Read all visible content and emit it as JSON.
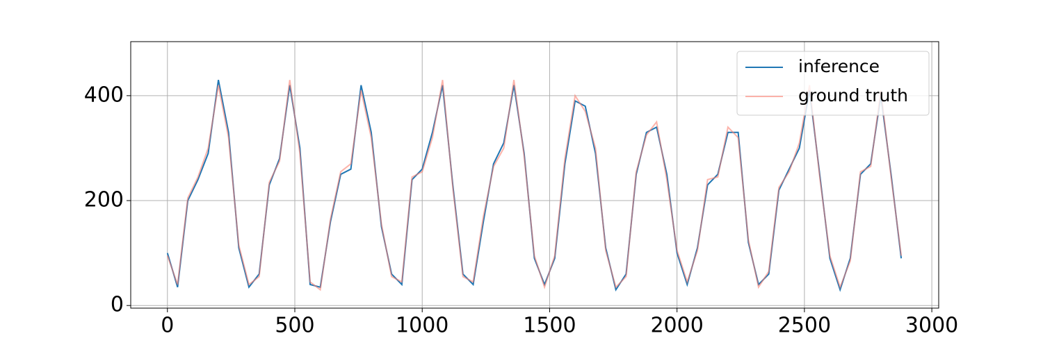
{
  "chart_data": {
    "type": "line",
    "x": [
      0,
      40,
      80,
      120,
      160,
      200,
      240,
      280,
      320,
      360,
      400,
      440,
      480,
      520,
      560,
      600,
      640,
      680,
      720,
      760,
      800,
      840,
      880,
      920,
      960,
      1000,
      1040,
      1080,
      1120,
      1160,
      1200,
      1240,
      1280,
      1320,
      1360,
      1400,
      1440,
      1480,
      1520,
      1560,
      1600,
      1640,
      1680,
      1720,
      1760,
      1800,
      1840,
      1880,
      1920,
      1960,
      2000,
      2040,
      2080,
      2120,
      2160,
      2200,
      2240,
      2280,
      2320,
      2360,
      2400,
      2440,
      2480,
      2520,
      2560,
      2600,
      2640,
      2680,
      2720,
      2760,
      2800,
      2840,
      2880
    ],
    "series": [
      {
        "name": "inference",
        "color": "#1f77b4",
        "values": [
          100,
          35,
          200,
          240,
          290,
          430,
          330,
          110,
          35,
          60,
          230,
          280,
          420,
          300,
          40,
          35,
          160,
          250,
          260,
          420,
          330,
          150,
          60,
          40,
          240,
          260,
          330,
          420,
          230,
          60,
          40,
          160,
          270,
          310,
          420,
          290,
          90,
          40,
          90,
          270,
          390,
          380,
          290,
          110,
          30,
          60,
          250,
          330,
          340,
          250,
          100,
          40,
          110,
          230,
          250,
          330,
          330,
          120,
          40,
          60,
          220,
          260,
          300,
          410,
          250,
          90,
          30,
          90,
          250,
          270,
          400,
          250,
          90
        ]
      },
      {
        "name": "ground truth",
        "color": "#fa8072",
        "values": [
          95,
          40,
          205,
          245,
          300,
          420,
          320,
          115,
          40,
          55,
          235,
          275,
          430,
          290,
          45,
          30,
          165,
          255,
          270,
          410,
          320,
          155,
          55,
          45,
          245,
          255,
          320,
          430,
          225,
          55,
          45,
          170,
          265,
          300,
          430,
          285,
          95,
          35,
          95,
          280,
          400,
          370,
          300,
          105,
          35,
          55,
          255,
          325,
          350,
          240,
          105,
          45,
          105,
          240,
          245,
          340,
          320,
          125,
          35,
          65,
          225,
          255,
          310,
          420,
          245,
          95,
          35,
          85,
          255,
          265,
          410,
          245,
          95
        ]
      }
    ],
    "xlim": [
      -144,
      3027
    ],
    "ylim": [
      -5,
      503
    ],
    "xticks": [
      0,
      500,
      1000,
      1500,
      2000,
      2500,
      3000
    ],
    "yticks": [
      0,
      200,
      400
    ],
    "grid": true,
    "legend": "upper right"
  }
}
